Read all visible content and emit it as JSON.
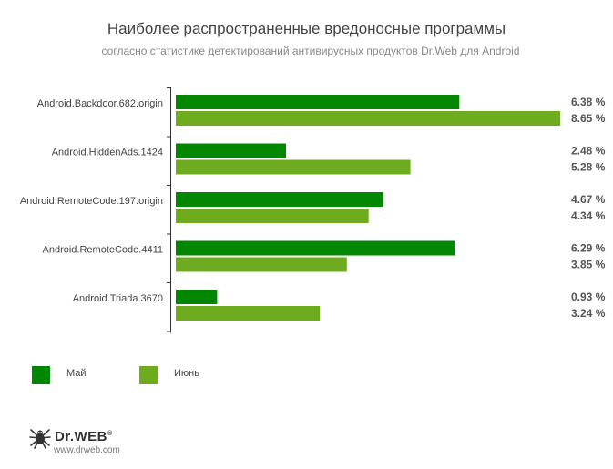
{
  "chart_data": {
    "type": "bar",
    "orientation": "horizontal",
    "title": "Наиболее распространенные вредоносные программы",
    "subtitle": "согласно статистике детектирований антивирусных продуктов Dr.Web для Android",
    "categories": [
      "Android.Backdoor.682.origin",
      "Android.HiddenAds.1424",
      "Android.RemoteCode.197.origin",
      "Android.RemoteCode.4411",
      "Android.Triada.3670"
    ],
    "series": [
      {
        "name": "Май",
        "color": "#038703",
        "values": [
          6.38,
          2.48,
          4.67,
          6.29,
          0.93
        ],
        "labels": [
          "6.38 %",
          "2.48 %",
          "4.67 %",
          "6.29 %",
          "0.93 %"
        ]
      },
      {
        "name": "Июнь",
        "color": "#6fab1e",
        "values": [
          8.65,
          5.28,
          4.34,
          3.85,
          3.24
        ],
        "labels": [
          "8.65 %",
          "5.28 %",
          "4.34 %",
          "3.85 %",
          "3.24 %"
        ]
      }
    ],
    "xlim": [
      0,
      8.65
    ],
    "grid": false,
    "legend_position": "bottom-left"
  },
  "logo": {
    "name": "Dr.WEB",
    "mark": "®",
    "url": "www.drweb.com",
    "icon": "spider-icon"
  }
}
